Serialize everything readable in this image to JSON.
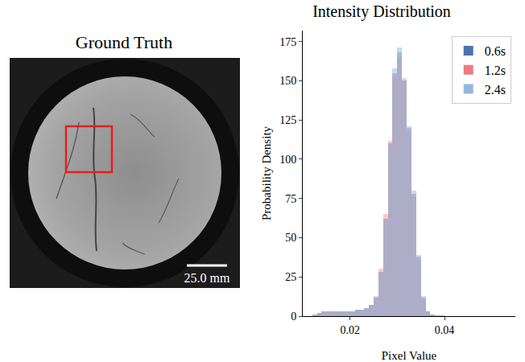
{
  "image_panel": {
    "title": "Ground Truth",
    "scale_bar": "25.0 mm"
  },
  "chart_data": {
    "type": "histogram",
    "title": "Intensity Distribution",
    "x_label": "Pixel Value",
    "y_label": "Probability Density",
    "bins": [
      0.012,
      0.013,
      0.014,
      0.015,
      0.016,
      0.017,
      0.018,
      0.019,
      0.02,
      0.021,
      0.022,
      0.023,
      0.024,
      0.025,
      0.026,
      0.027,
      0.028,
      0.029,
      0.03,
      0.031,
      0.032,
      0.033,
      0.034,
      0.035,
      0.036,
      0.037,
      0.038,
      0.039,
      0.04
    ],
    "series": [
      {
        "name": "0.6s",
        "color": "#4c72b0",
        "values": [
          1,
          2,
          3,
          3,
          3,
          3,
          3,
          3,
          3,
          4,
          4,
          5,
          7,
          12,
          28,
          62,
          110,
          155,
          168,
          150,
          120,
          78,
          38,
          12,
          3,
          1,
          0.5,
          0.3
        ]
      },
      {
        "name": "1.2s",
        "color": "#ee7b7b",
        "values": [
          1,
          2,
          3,
          3,
          3,
          3,
          3,
          3,
          3,
          4,
          4,
          5,
          7,
          13,
          30,
          65,
          112,
          152,
          165,
          152,
          118,
          76,
          36,
          11,
          3,
          1,
          0.5,
          0.3
        ]
      },
      {
        "name": "2.4s",
        "color": "#94b8dc",
        "values": [
          1,
          2,
          2,
          3,
          3,
          3,
          3,
          3,
          3,
          4,
          4,
          5,
          7,
          12,
          27,
          60,
          108,
          158,
          171,
          149,
          121,
          80,
          39,
          13,
          3,
          1,
          0.5,
          0.3
        ]
      }
    ],
    "xlim": [
      0.01,
      0.055
    ],
    "xticks": [
      0.02,
      0.04
    ],
    "ylim": [
      0,
      182
    ],
    "yticks": [
      0,
      25,
      50,
      75,
      100,
      125,
      150,
      175
    ],
    "legend": "upper right",
    "grid": false
  }
}
